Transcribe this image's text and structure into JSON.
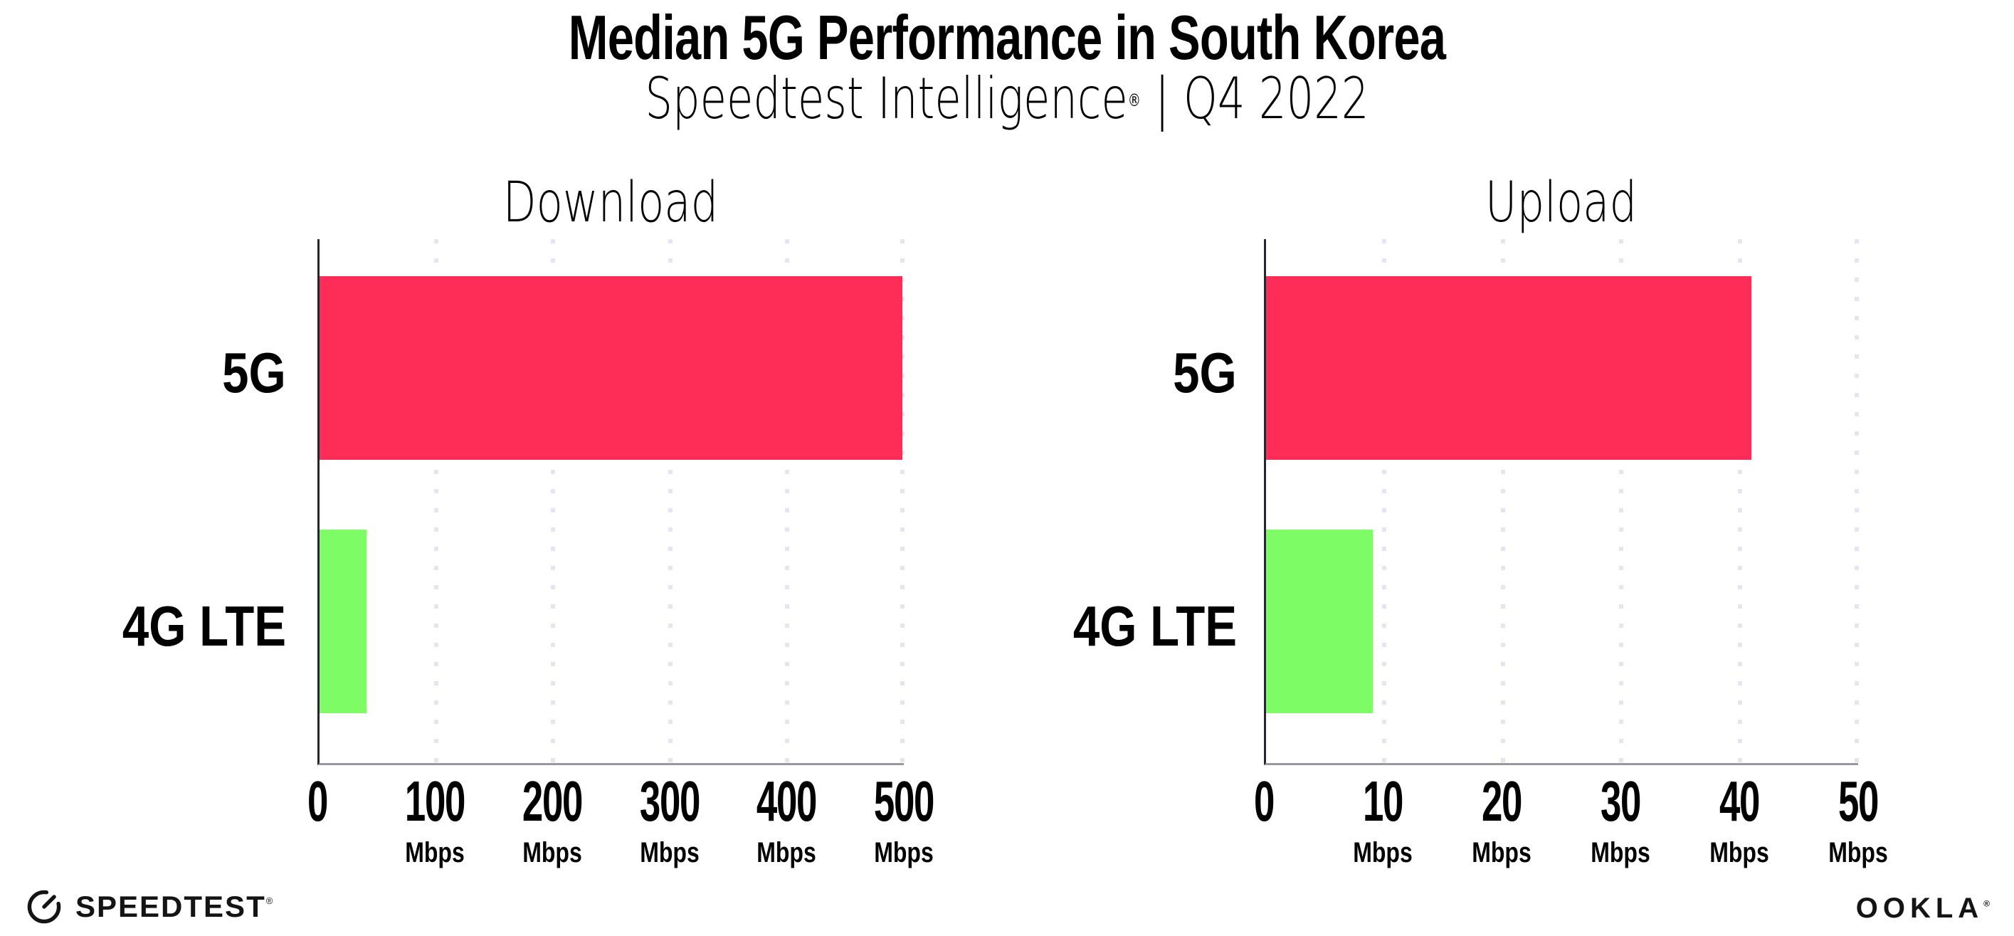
{
  "header": {
    "title": "Median 5G Performance in South Korea",
    "subtitle_brand": "Speedtest Intelligence",
    "subtitle_reg": "®",
    "subtitle_divider": "|",
    "subtitle_period": "Q4 2022"
  },
  "charts": [
    {
      "title": "Download",
      "bars": [
        {
          "category": "5G",
          "value": 499,
          "unit": "Mbps",
          "width_pct": 99.8
        },
        {
          "category": "4G LTE",
          "value": 40,
          "unit": "Mbps",
          "width_pct": 8
        }
      ],
      "ticks": [
        {
          "label": "0",
          "unit": ""
        },
        {
          "label": "100",
          "unit": "Mbps"
        },
        {
          "label": "200",
          "unit": "Mbps"
        },
        {
          "label": "300",
          "unit": "Mbps"
        },
        {
          "label": "400",
          "unit": "Mbps"
        },
        {
          "label": "500",
          "unit": "Mbps"
        }
      ]
    },
    {
      "title": "Upload",
      "bars": [
        {
          "category": "5G",
          "value": 41,
          "unit": "Mbps",
          "width_pct": 82
        },
        {
          "category": "4G LTE",
          "value": 9,
          "unit": "Mbps",
          "width_pct": 18
        }
      ],
      "ticks": [
        {
          "label": "0",
          "unit": ""
        },
        {
          "label": "10",
          "unit": "Mbps"
        },
        {
          "label": "20",
          "unit": "Mbps"
        },
        {
          "label": "30",
          "unit": "Mbps"
        },
        {
          "label": "40",
          "unit": "Mbps"
        },
        {
          "label": "50",
          "unit": "Mbps"
        }
      ]
    }
  ],
  "footer": {
    "speedtest": "SPEEDTEST",
    "speedtest_reg": "®",
    "ookla": "OOKLA",
    "ookla_reg": "®"
  },
  "colors": {
    "bar_5g": "#FE2D57",
    "bar_4g_lte": "#7EFC65",
    "grid": "#E5E5EF",
    "axis_y": "#26262E",
    "axis_x": "#98989F"
  },
  "chart_data": [
    {
      "type": "bar",
      "orientation": "horizontal",
      "title": "Download",
      "categories": [
        "5G",
        "4G LTE"
      ],
      "values": [
        499,
        40
      ],
      "unit": "Mbps",
      "xlabel": "Mbps",
      "xlim": [
        0,
        500
      ],
      "xticks": [
        0,
        100,
        200,
        300,
        400,
        500
      ],
      "colors": [
        "#FE2D57",
        "#7EFC65"
      ],
      "grid": true,
      "grid_style": "dotted-vertical",
      "legend": false
    },
    {
      "type": "bar",
      "orientation": "horizontal",
      "title": "Upload",
      "categories": [
        "5G",
        "4G LTE"
      ],
      "values": [
        41,
        9
      ],
      "unit": "Mbps",
      "xlabel": "Mbps",
      "xlim": [
        0,
        50
      ],
      "xticks": [
        0,
        10,
        20,
        30,
        40,
        50
      ],
      "colors": [
        "#FE2D57",
        "#7EFC65"
      ],
      "grid": true,
      "grid_style": "dotted-vertical",
      "legend": false
    }
  ]
}
